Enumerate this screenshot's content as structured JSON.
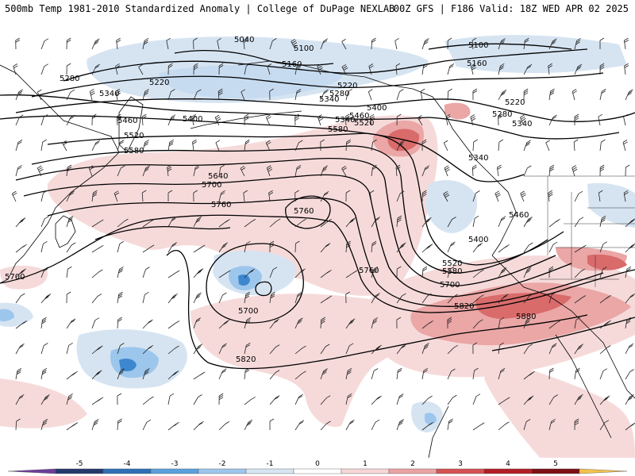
{
  "header": {
    "left": "500mb Temp 1981-2010 Standardized Anomaly | College of DuPage NEXLAB",
    "right": "00Z GFS | F186 Valid: 18Z WED APR 02 2025"
  },
  "contours": [
    {
      "label": "5040"
    },
    {
      "label": "5100"
    },
    {
      "label": "5100"
    },
    {
      "label": "5160"
    },
    {
      "label": "5160"
    },
    {
      "label": "5220"
    },
    {
      "label": "5220"
    },
    {
      "label": "5220"
    },
    {
      "label": "5280"
    },
    {
      "label": "5280"
    },
    {
      "label": "5280"
    },
    {
      "label": "5340"
    },
    {
      "label": "5340"
    },
    {
      "label": "5340"
    },
    {
      "label": "5340"
    },
    {
      "label": "5340"
    },
    {
      "label": "5400"
    },
    {
      "label": "5400"
    },
    {
      "label": "5400"
    },
    {
      "label": "5460"
    },
    {
      "label": "5460"
    },
    {
      "label": "5460"
    },
    {
      "label": "5520"
    },
    {
      "label": "5520"
    },
    {
      "label": "5520"
    },
    {
      "label": "5580"
    },
    {
      "label": "5580"
    },
    {
      "label": "5580"
    },
    {
      "label": "5640"
    },
    {
      "label": "5700"
    },
    {
      "label": "5700"
    },
    {
      "label": "5700"
    },
    {
      "label": "5700"
    },
    {
      "label": "5760"
    },
    {
      "label": "5760"
    },
    {
      "label": "5760"
    },
    {
      "label": "5820"
    },
    {
      "label": "5820"
    },
    {
      "label": "5880"
    }
  ],
  "colorbar": {
    "ticks": [
      "-5",
      "-4",
      "-3",
      "-2",
      "-1",
      "0",
      "1",
      "2",
      "3",
      "4",
      "5"
    ],
    "colors": [
      "#6a3d9a",
      "#24396b",
      "#2f6fb5",
      "#5aa0dc",
      "#9dc6ec",
      "#d6e4f2",
      "#ffffff",
      "#f6d6d6",
      "#eaa2a2",
      "#d55252",
      "#b21e24",
      "#7d0f14",
      "#f4c24c"
    ]
  },
  "colors": {
    "cold_light": "#d6e4f2",
    "cold_mid": "#9dc6ec",
    "cold_dark": "#3d87cf",
    "warm_light": "#f6dada",
    "warm_mid": "#eba6a6",
    "warm_dark": "#d96b6b"
  }
}
